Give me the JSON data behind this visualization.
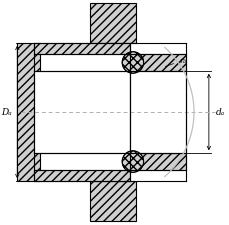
{
  "bg_color": "#ffffff",
  "line_color": "#000000",
  "center_line_color": "#b0b0b0",
  "dim_line_color": "#000000",
  "hatch_face_color": "#d0d0d0",
  "Da_label": "Dₐ",
  "da_label": "dₐ",
  "ra_label": "rₐ",
  "figsize": [
    2.3,
    2.26
  ],
  "dpi": 100
}
